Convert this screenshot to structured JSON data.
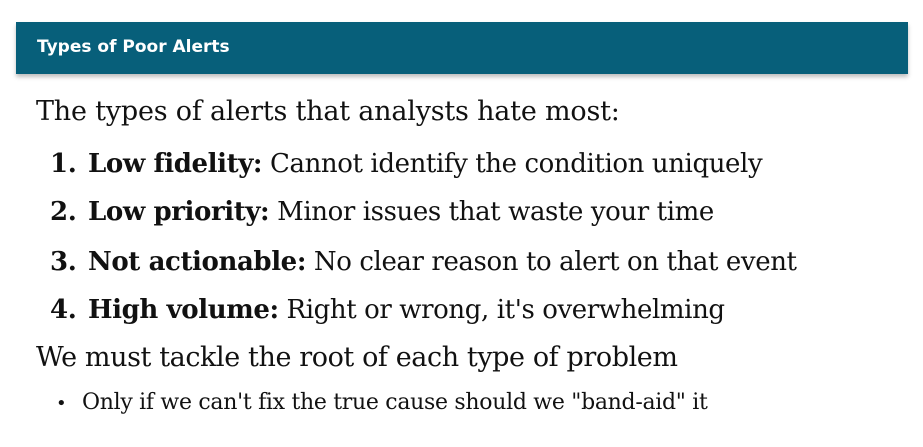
{
  "header": {
    "title": "Types of Poor Alerts"
  },
  "slide": {
    "intro": "The types of alerts that analysts hate most:",
    "items": [
      {
        "number": "1.",
        "term": "Low fidelity:",
        "description": " Cannot identify the condition uniquely"
      },
      {
        "number": "2.",
        "term": "Low priority:",
        "description": " Minor issues that waste your time"
      },
      {
        "number": "3.",
        "term": "Not actionable:",
        "description": " No clear reason to alert on that event"
      },
      {
        "number": "4.",
        "term": "High volume:",
        "description": " Right or wrong, it's overwhelming"
      }
    ],
    "closing": "We must tackle the root of each type of problem",
    "bullet": {
      "marker": "•",
      "text": "Only if we can't fix the true cause should we \"band-aid\" it"
    }
  },
  "colors": {
    "title_bar": "#075f7a",
    "title_text": "#ffffff",
    "body_text": "#111111"
  }
}
